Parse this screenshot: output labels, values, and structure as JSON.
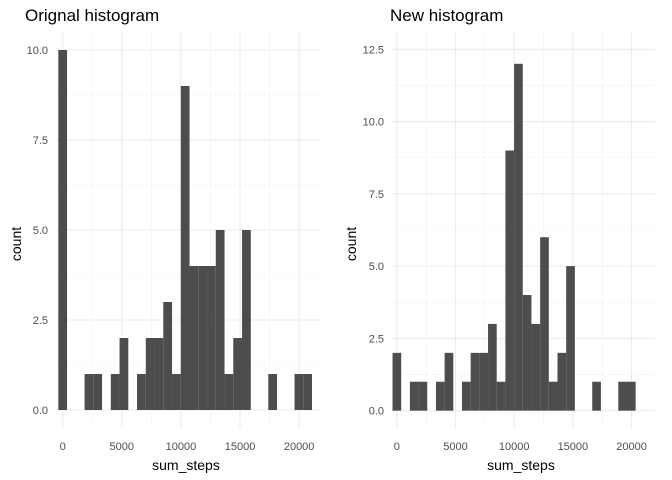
{
  "chart_data": [
    {
      "type": "bar",
      "title": "Orignal histogram",
      "xlabel": "sum_steps",
      "ylabel": "count",
      "bin_width": 740,
      "x": [
        0,
        740,
        1480,
        2220,
        2960,
        3700,
        4440,
        5180,
        5920,
        6660,
        7400,
        8140,
        8880,
        9620,
        10360,
        11100,
        11840,
        12580,
        13320,
        14060,
        14800,
        15540,
        16280,
        17020,
        17760,
        18500,
        19240,
        19980,
        20720
      ],
      "values": [
        10,
        0,
        0,
        1,
        1,
        0,
        1,
        2,
        0,
        1,
        2,
        2,
        3,
        1,
        9,
        4,
        4,
        4,
        5,
        1,
        2,
        5,
        0,
        0,
        1,
        0,
        0,
        1,
        1
      ],
      "xlim": [
        -650,
        21850
      ],
      "ylim": [
        -0.5,
        10.5
      ],
      "xticks": [
        0,
        5000,
        10000,
        15000,
        20000
      ],
      "xtick_labels": [
        "0",
        "5000",
        "10000",
        "15000",
        "20000"
      ],
      "yticks": [
        0,
        2.5,
        5,
        7.5,
        10
      ],
      "ytick_labels": [
        "0.0",
        "2.5",
        "5.0",
        "7.5",
        "10.0"
      ],
      "grid": true,
      "bar_color": "#4d4d4d"
    },
    {
      "type": "bar",
      "title": "New histogram",
      "xlabel": "sum_steps",
      "ylabel": "count",
      "bin_width": 740,
      "x": [
        0,
        740,
        1480,
        2220,
        2960,
        3700,
        4440,
        5180,
        5920,
        6660,
        7400,
        8140,
        8880,
        9620,
        10360,
        11100,
        11840,
        12580,
        13320,
        14060,
        14800,
        15540,
        16280,
        17020,
        17760,
        18500,
        19240,
        19980,
        20720
      ],
      "values": [
        2,
        0,
        1,
        1,
        0,
        1,
        2,
        0,
        1,
        2,
        2,
        3,
        1,
        9,
        12,
        4,
        3,
        6,
        1,
        2,
        5,
        0,
        0,
        1,
        0,
        0,
        1,
        1,
        0
      ],
      "xlim": [
        -500,
        22000
      ],
      "ylim": [
        -0.6,
        13.1
      ],
      "xticks": [
        0,
        5000,
        10000,
        15000,
        20000
      ],
      "xtick_labels": [
        "0",
        "5000",
        "10000",
        "15000",
        "20000"
      ],
      "yticks": [
        0,
        2.5,
        5,
        7.5,
        10,
        12.5
      ],
      "ytick_labels": [
        "0.0",
        "2.5",
        "5.0",
        "7.5",
        "10.0",
        "12.5"
      ],
      "grid": true,
      "bar_color": "#4d4d4d"
    }
  ]
}
